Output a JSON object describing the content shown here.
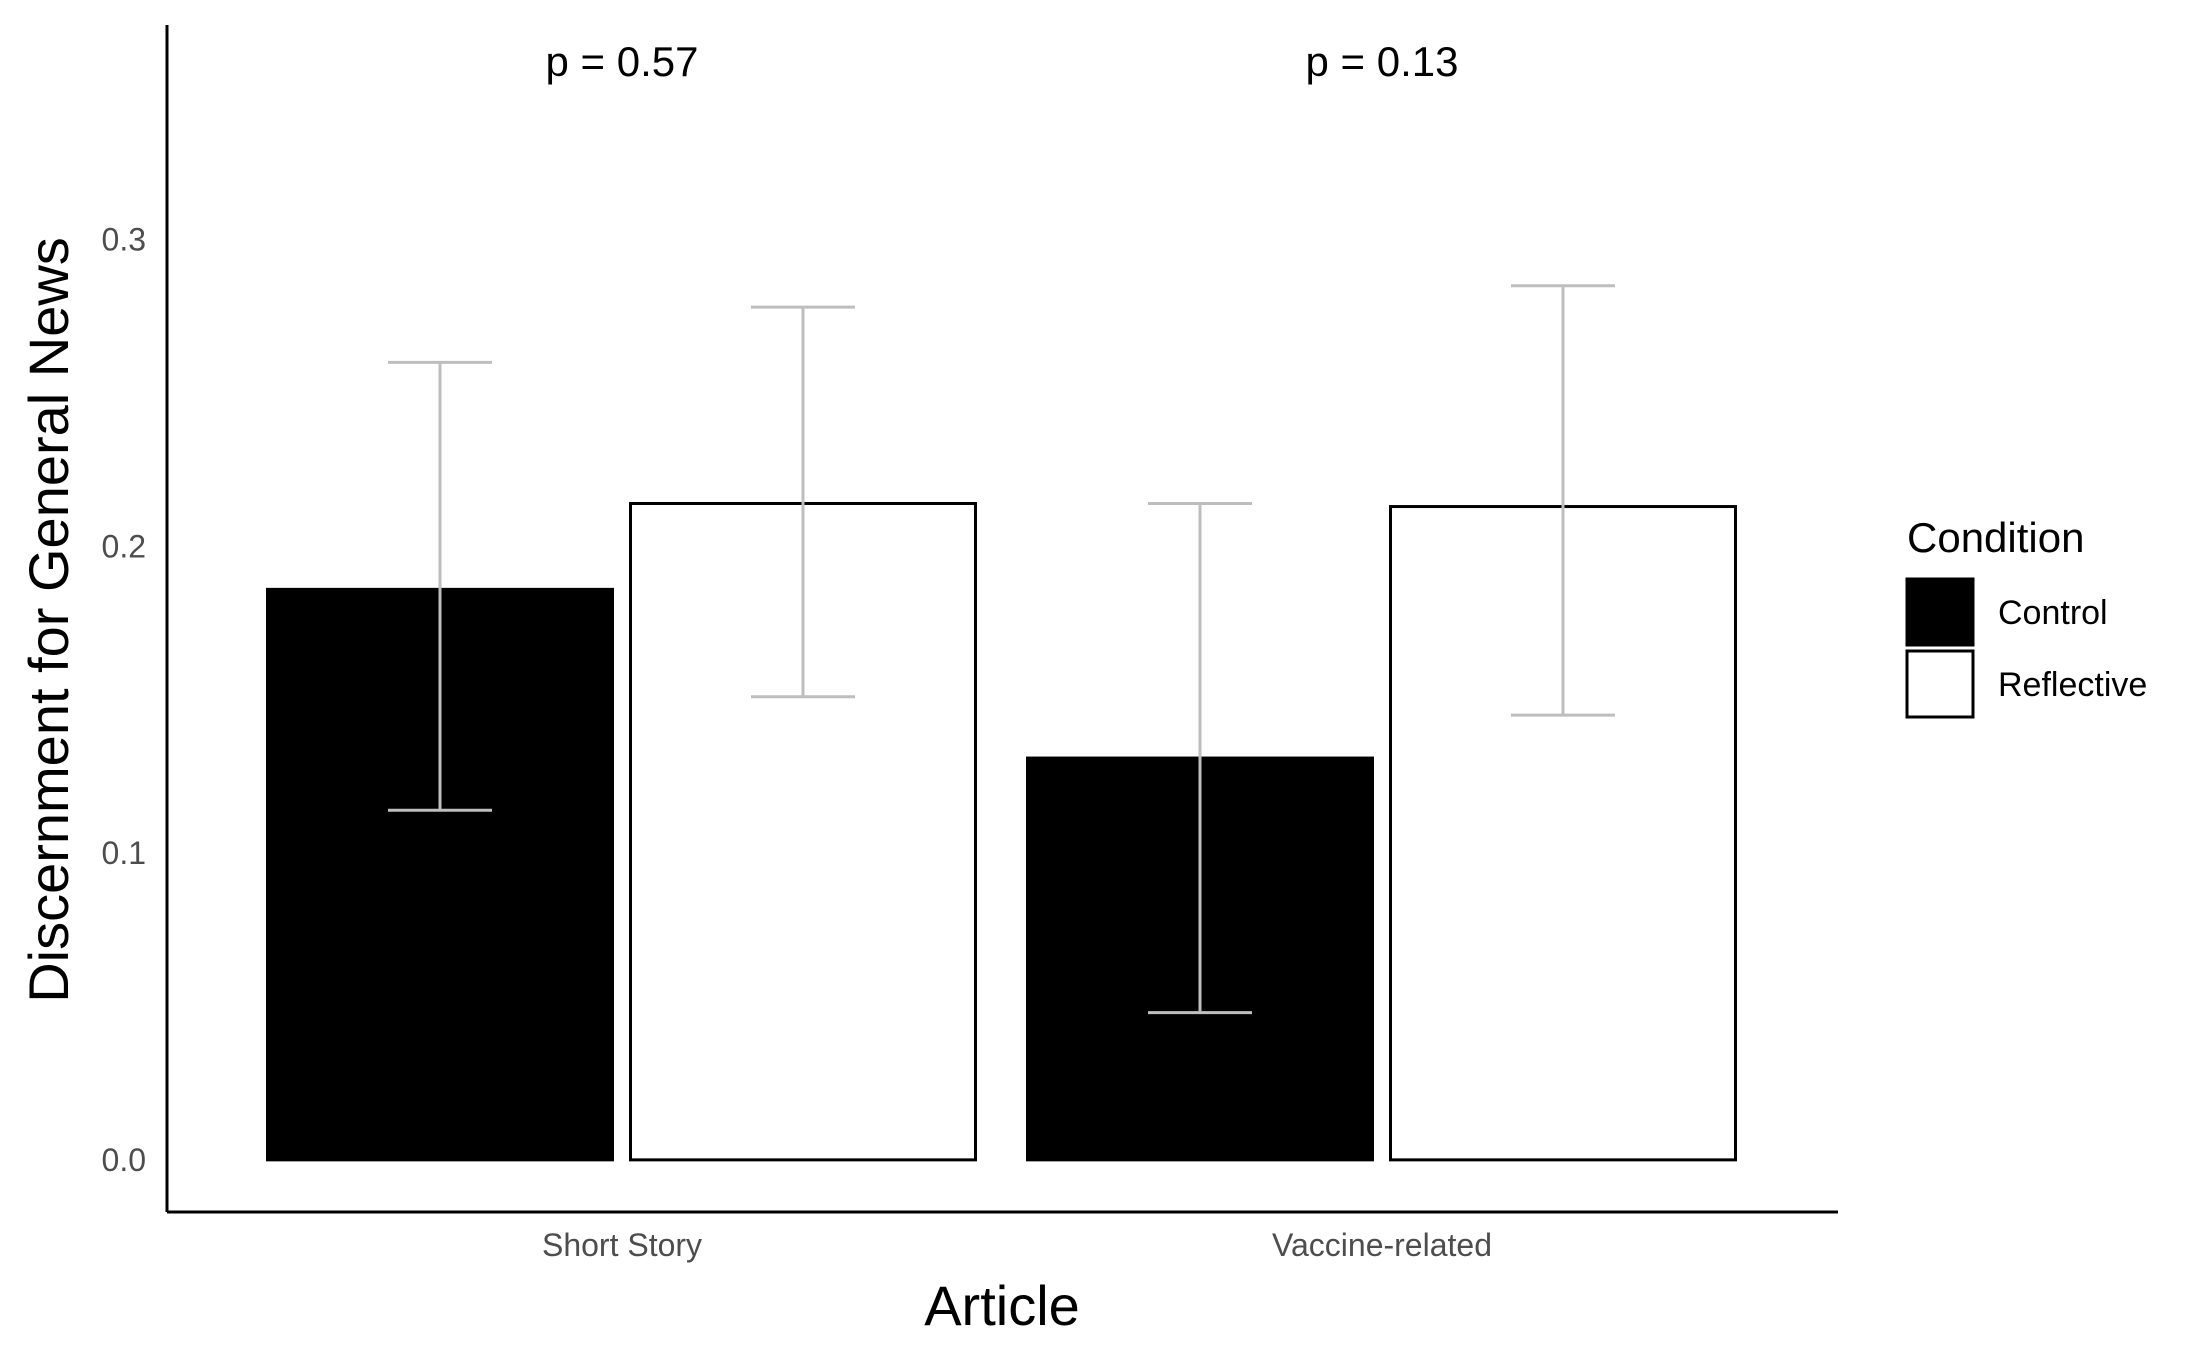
{
  "chart_data": {
    "type": "bar",
    "xlabel": "Article",
    "ylabel": "Discernment for General News",
    "categories": [
      "Short Story",
      "Vaccine-related"
    ],
    "ylim": [
      -0.017,
      0.37
    ],
    "yticks": [
      0.0,
      0.1,
      0.2,
      0.3
    ],
    "ytick_labels": [
      "0.0",
      "0.1",
      "0.2",
      "0.3"
    ],
    "grid": false,
    "legend": {
      "title": "Condition",
      "placement": "right"
    },
    "series": [
      {
        "name": "Control",
        "fill": "#000000",
        "values": [
          0.186,
          0.131
        ],
        "ci_low": [
          0.114,
          0.048
        ],
        "ci_high": [
          0.26,
          0.214
        ]
      },
      {
        "name": "Reflective",
        "fill": "#ffffff",
        "values": [
          0.214,
          0.213
        ],
        "ci_low": [
          0.151,
          0.145
        ],
        "ci_high": [
          0.278,
          0.285
        ]
      }
    ],
    "annotations": [
      "p = 0.57",
      "p = 0.13"
    ],
    "errorbar_color": "#bebebe",
    "axis_color": "#000000"
  }
}
